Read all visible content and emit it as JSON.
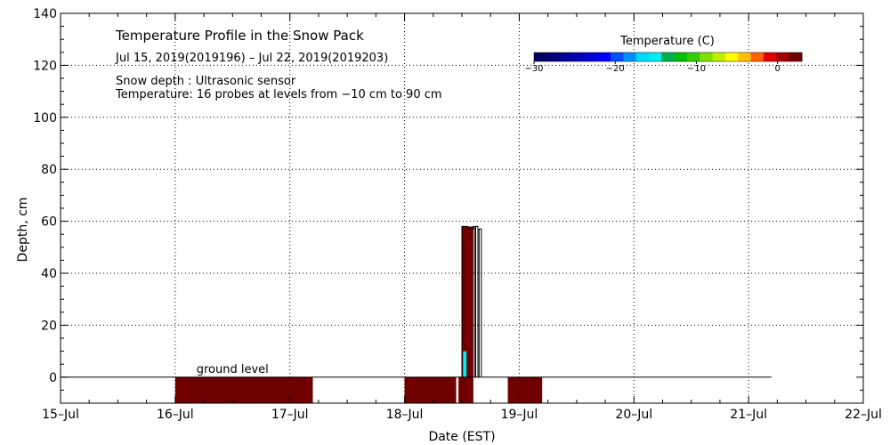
{
  "chart_data": {
    "type": "heatmap",
    "title": "Temperature Profile in the Snow Pack",
    "subtitle": "Jul 15, 2019(2019196) – Jul 22, 2019(2019203)",
    "notes": [
      "Snow depth : Ultrasonic sensor",
      "Temperature: 16 probes at levels from −10 cm to 90 cm"
    ],
    "xlabel": "Date (EST)",
    "ylabel": "Depth, cm",
    "x_ticks": [
      "15–Jul",
      "16–Jul",
      "17–Jul",
      "18–Jul",
      "19–Jul",
      "20–Jul",
      "21–Jul",
      "22–Jul"
    ],
    "xlim": [
      0,
      7
    ],
    "y_ticks": [
      0,
      20,
      40,
      60,
      80,
      100,
      120,
      140
    ],
    "ylim": [
      -10,
      140
    ],
    "grid": true,
    "ground_label": "ground level",
    "ground_level": {
      "y": 0,
      "x_range": [
        0,
        6.2
      ]
    },
    "colorbar": {
      "title": "Temperature (C)",
      "ticks": [
        -30,
        -20,
        -10,
        0
      ],
      "range": [
        -30,
        3
      ],
      "colors": [
        "#000060",
        "#00007a",
        "#000095",
        "#0000b5",
        "#0000d8",
        "#0000ff",
        "#0050ff",
        "#0090ff",
        "#00d8ff",
        "#00f0f0",
        "#00b050",
        "#00c000",
        "#30d000",
        "#80e000",
        "#c0f000",
        "#ffff00",
        "#ffc000",
        "#ff6000",
        "#e00000",
        "#a00000",
        "#700000"
      ]
    },
    "temperature_blocks": [
      {
        "x0": 1.0,
        "x1": 2.2,
        "y0": -10,
        "y1": 0,
        "temp": 3
      },
      {
        "x0": 3.0,
        "x1": 3.45,
        "y0": -10,
        "y1": 0,
        "temp": 3
      },
      {
        "x0": 3.47,
        "x1": 3.6,
        "y0": -10,
        "y1": 0,
        "temp": 3
      },
      {
        "x0": 3.9,
        "x1": 4.2,
        "y0": -10,
        "y1": 0,
        "temp": 3
      },
      {
        "x0": 3.5,
        "x1": 3.55,
        "y0": 0,
        "y1": 58,
        "temp": 3
      },
      {
        "x0": 3.55,
        "x1": 3.6,
        "y0": 0,
        "y1": 58,
        "temp": 3
      },
      {
        "x0": 3.51,
        "x1": 3.54,
        "y0": 0,
        "y1": 10,
        "temp": -15
      }
    ],
    "snow_depth_outline": [
      [
        3.5,
        0
      ],
      [
        3.5,
        58
      ],
      [
        3.55,
        58
      ],
      [
        3.55,
        57
      ],
      [
        3.6,
        57
      ],
      [
        3.6,
        58
      ],
      [
        3.61,
        58
      ],
      [
        3.61,
        0
      ],
      [
        3.62,
        0
      ],
      [
        3.62,
        58
      ],
      [
        3.64,
        58
      ],
      [
        3.64,
        0
      ],
      [
        3.65,
        0
      ],
      [
        3.65,
        57
      ],
      [
        3.67,
        57
      ],
      [
        3.67,
        0
      ]
    ]
  }
}
